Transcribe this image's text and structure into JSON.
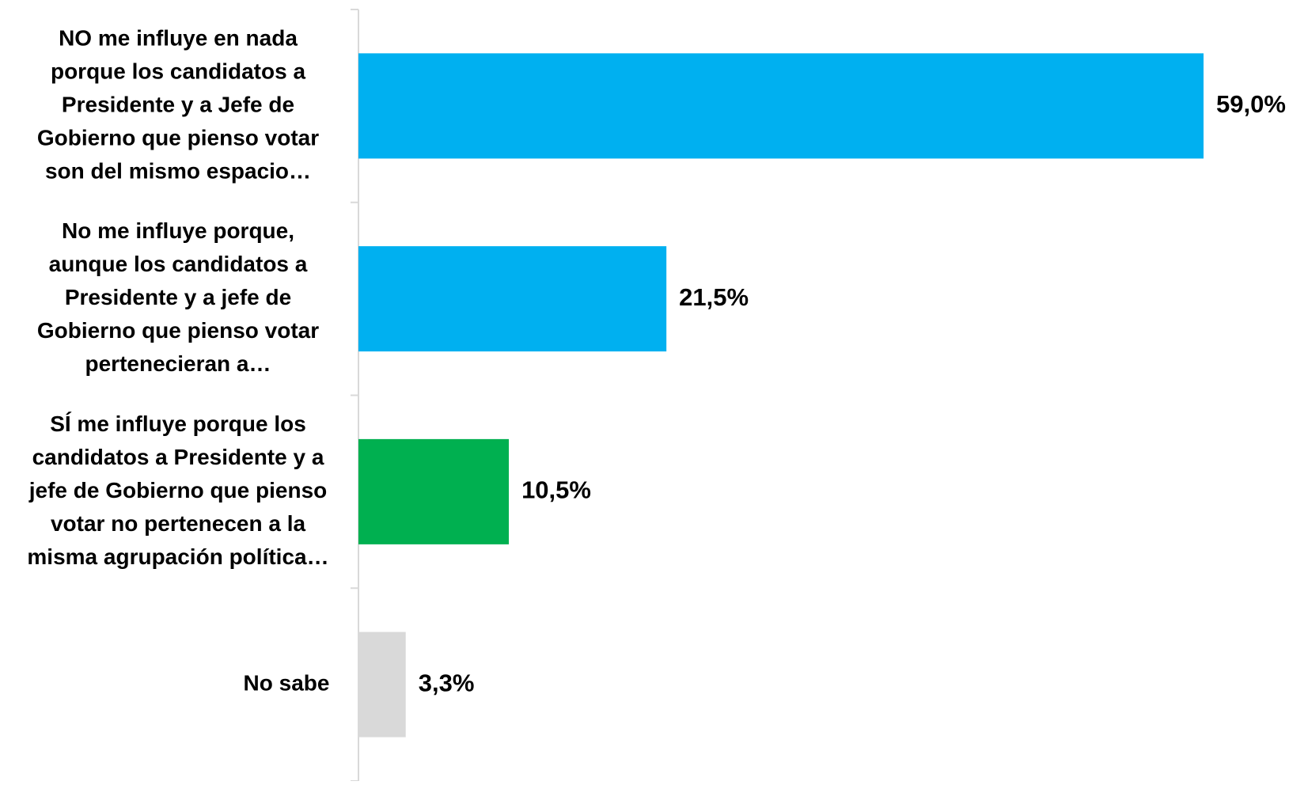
{
  "chart_data": {
    "type": "bar",
    "orientation": "horizontal",
    "categories": [
      [
        "NO me influye en nada",
        "porque los candidatos a",
        "Presidente y a Jefe de",
        "Gobierno que pienso votar",
        "son del mismo espacio…"
      ],
      [
        "No me influye porque,",
        "aunque los candidatos a",
        "Presidente y a jefe de",
        "Gobierno que pienso votar",
        "pertenecieran a…"
      ],
      [
        "SÍ me influye porque los",
        "candidatos a Presidente y a",
        "jefe de Gobierno que pienso",
        "votar  no pertenecen a la",
        "misma agrupación política…"
      ],
      [
        "No sabe"
      ]
    ],
    "values": [
      59.0,
      21.5,
      10.5,
      3.3
    ],
    "value_labels": [
      "59,0%",
      "21,5%",
      "10,5%",
      "3,3%"
    ],
    "colors": [
      "#00B0F0",
      "#00B0F0",
      "#00B050",
      "#D9D9D9"
    ],
    "xlim": [
      0,
      59.0
    ],
    "grid": false,
    "legend": "none"
  }
}
